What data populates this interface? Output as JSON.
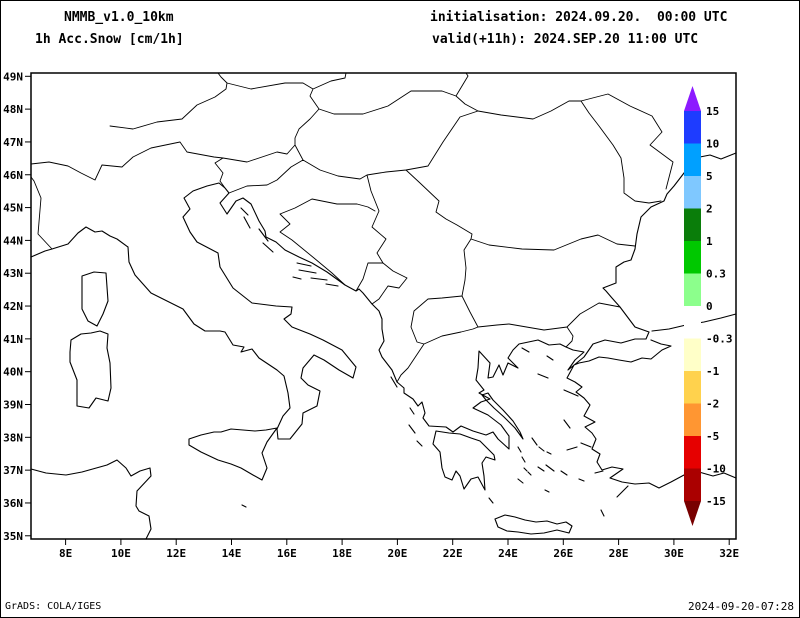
{
  "header": {
    "model": "NMMB_v1.0_10km",
    "product": "1h Acc.Snow [cm/1h]",
    "initialisation": "initialisation: 2024.09.20.  00:00 UTC",
    "valid": "valid(+11h): 2024.SEP.20 11:00 UTC"
  },
  "map": {
    "lat_labels": [
      "49N",
      "48N",
      "47N",
      "46N",
      "45N",
      "44N",
      "43N",
      "42N",
      "41N",
      "40N",
      "39N",
      "38N",
      "37N",
      "36N",
      "35N"
    ],
    "lon_labels": [
      "8E",
      "10E",
      "12E",
      "14E",
      "16E",
      "18E",
      "20E",
      "22E",
      "24E",
      "26E",
      "28E",
      "30E",
      "32E"
    ]
  },
  "colorbar": {
    "labels": [
      "15",
      "10",
      "5",
      "2",
      "1",
      "0.3",
      "0",
      "-0.3",
      "-1",
      "-2",
      "-5",
      "-10",
      "-15"
    ],
    "top_arrow_color": "#8c1aff",
    "segment_colors": [
      "#1e3cff",
      "#00a0ff",
      "#7fc8ff",
      "#0a7d0a",
      "#00c800",
      "#8cff8c",
      "#ffffff",
      "#ffffc8",
      "#ffd24d",
      "#ff9632",
      "#e60000",
      "#aa0000"
    ],
    "bottom_arrow_color": "#780000"
  },
  "footer": {
    "credit": "GrADS: COLA/IGES",
    "generated": "2024-09-20-07:28"
  }
}
